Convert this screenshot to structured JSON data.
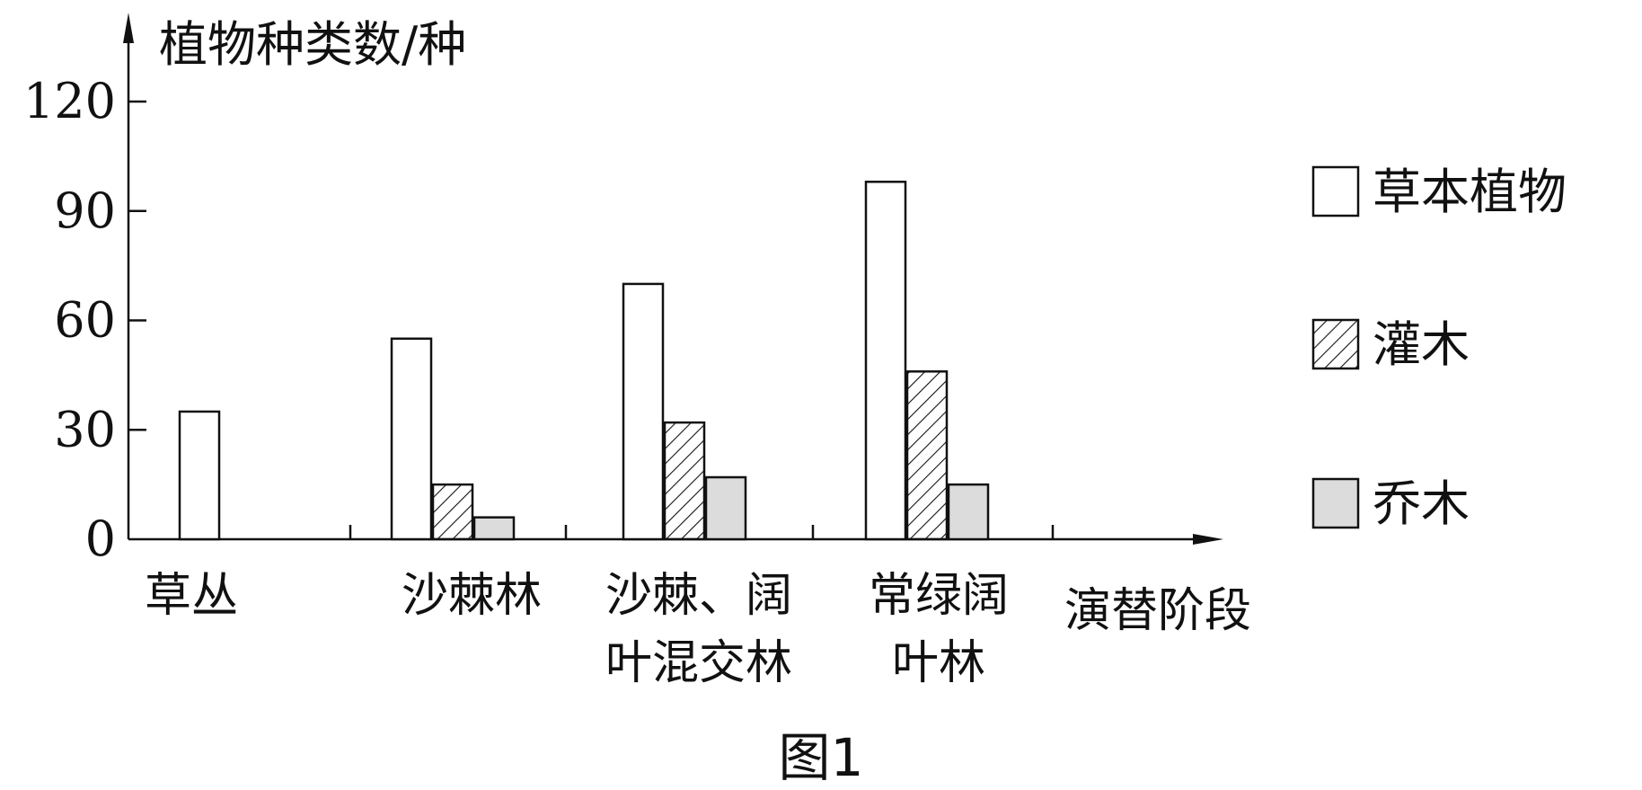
{
  "chart_data": {
    "type": "bar",
    "title": "",
    "ylabel": "植物种类数/种",
    "xlabel": "演替阶段",
    "caption": "图1",
    "ylim": [
      0,
      120
    ],
    "yticks": [
      0,
      30,
      60,
      90,
      120
    ],
    "categories": [
      [
        "草丛"
      ],
      [
        "沙棘林"
      ],
      [
        "沙棘、阔",
        "叶混交林"
      ],
      [
        "常绿阔",
        "叶林"
      ]
    ],
    "series": [
      {
        "name": "草本植物",
        "pattern": "open",
        "values": [
          35,
          55,
          70,
          98
        ]
      },
      {
        "name": "灌木",
        "pattern": "hatched",
        "values": [
          0,
          15,
          32,
          46
        ]
      },
      {
        "name": "乔木",
        "pattern": "gray",
        "values": [
          0,
          6,
          17,
          15
        ]
      }
    ],
    "legend_position": "right",
    "grid": false,
    "colors": {
      "axis": "#111111",
      "bar_outline": "#111111",
      "gray_fill": "#dcdcdc",
      "background": "#ffffff"
    }
  }
}
